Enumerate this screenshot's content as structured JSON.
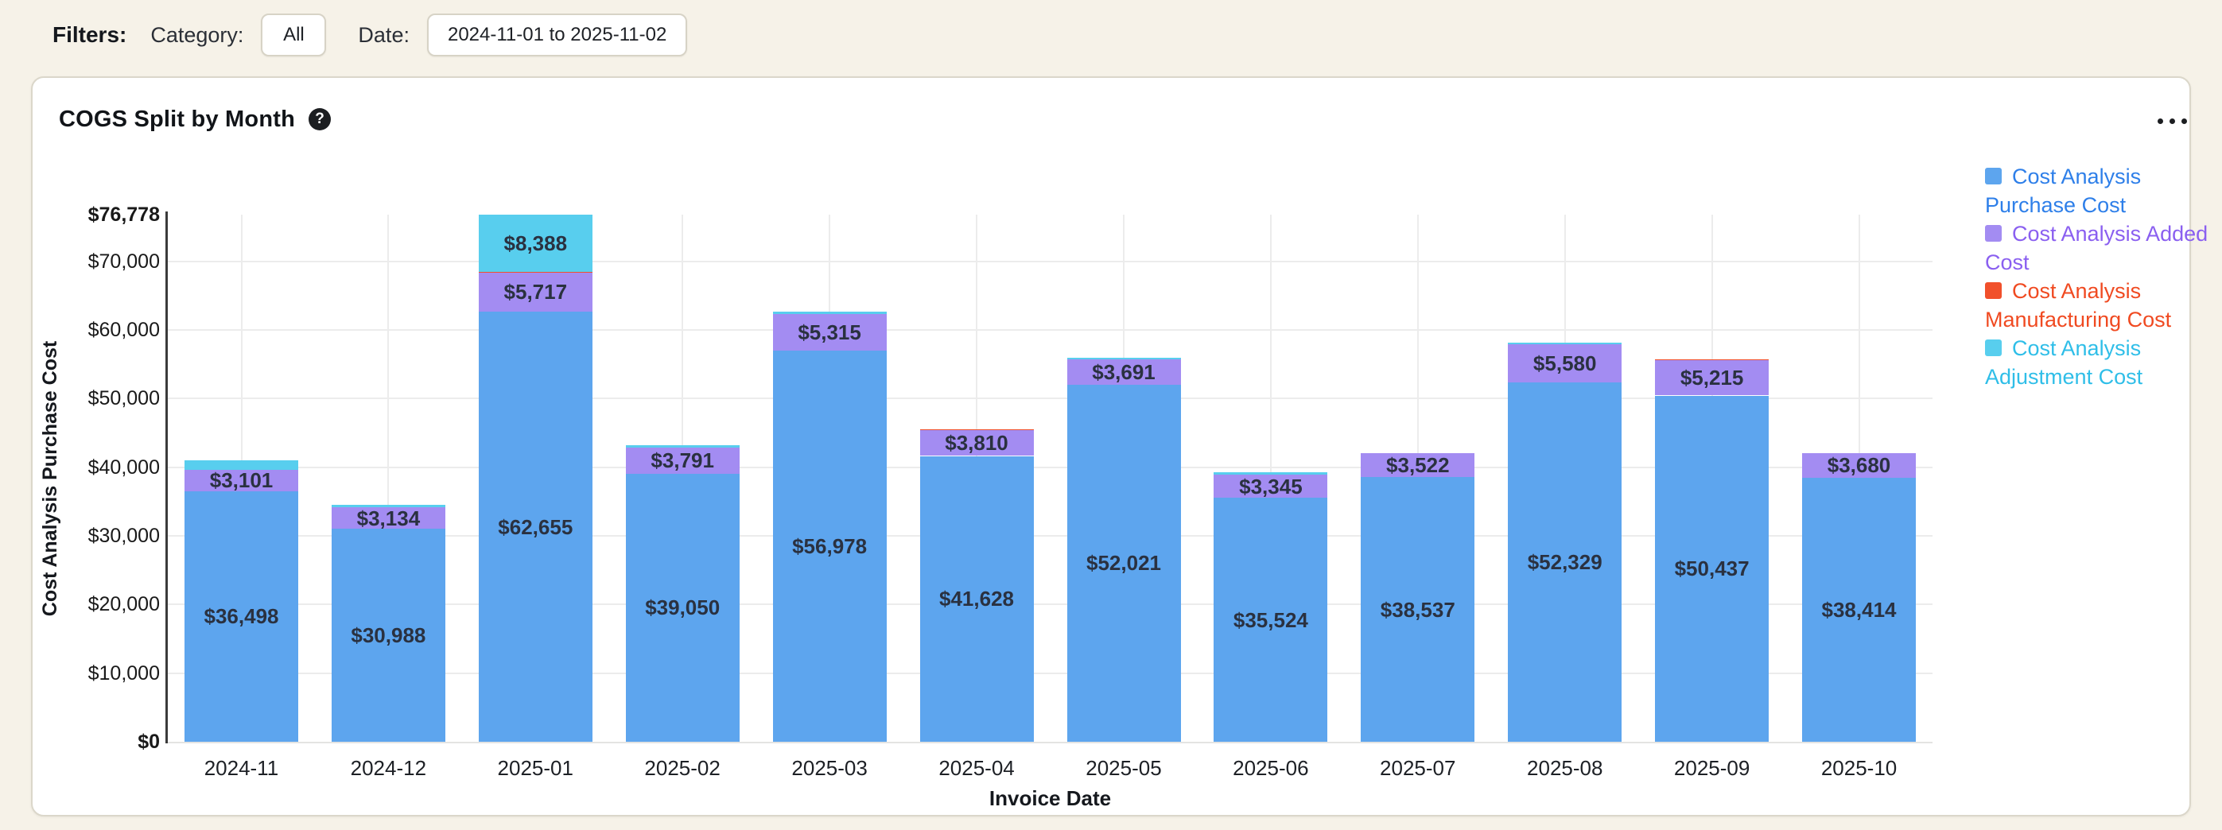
{
  "filters": {
    "label": "Filters:",
    "category_label": "Category:",
    "category_value": "All",
    "date_label": "Date:",
    "date_value": "2024-11-01 to 2025-11-02"
  },
  "card": {
    "title": "COGS Split by Month",
    "help_icon": "question-mark",
    "menu_icon": "ellipsis"
  },
  "chart_data": {
    "type": "bar",
    "stacked": true,
    "title": "COGS Split by Month",
    "xlabel": "Invoice Date",
    "ylabel": "Cost Analysis Purchase Cost",
    "ylim": [
      0,
      76778
    ],
    "grid": true,
    "legend_position": "right",
    "categories": [
      "2024-11",
      "2024-12",
      "2025-01",
      "2025-02",
      "2025-03",
      "2025-04",
      "2025-05",
      "2025-06",
      "2025-07",
      "2025-08",
      "2025-09",
      "2025-10"
    ],
    "yticks": [
      {
        "value": 0,
        "label": "$0",
        "bold": true
      },
      {
        "value": 10000,
        "label": "$10,000",
        "bold": false
      },
      {
        "value": 20000,
        "label": "$20,000",
        "bold": false
      },
      {
        "value": 30000,
        "label": "$30,000",
        "bold": false
      },
      {
        "value": 40000,
        "label": "$40,000",
        "bold": false
      },
      {
        "value": 50000,
        "label": "$50,000",
        "bold": false
      },
      {
        "value": 60000,
        "label": "$60,000",
        "bold": false
      },
      {
        "value": 70000,
        "label": "$70,000",
        "bold": false
      },
      {
        "value": 76778,
        "label": "$76,778",
        "bold": true
      }
    ],
    "series": [
      {
        "name": "Cost Analysis Purchase Cost",
        "color": "#5DA5EE",
        "text_color": "#2E7FE9",
        "values": [
          36498,
          30988,
          62655,
          39050,
          56978,
          41628,
          52021,
          35524,
          38537,
          52329,
          50437,
          38414
        ],
        "labels": [
          "$36,498",
          "$30,988",
          "$62,655",
          "$39,050",
          "$56,978",
          "$41,628",
          "$52,021",
          "$35,524",
          "$38,537",
          "$52,329",
          "$50,437",
          "$38,414"
        ]
      },
      {
        "name": "Cost Analysis Added Cost",
        "color": "#A38CF2",
        "text_color": "#8A5FF0",
        "values": [
          3101,
          3134,
          5717,
          3791,
          5315,
          3810,
          3691,
          3345,
          3522,
          5580,
          5215,
          3680
        ],
        "labels": [
          "$3,101",
          "$3,134",
          "$5,717",
          "$3,791",
          "$5,315",
          "$3,810",
          "$3,691",
          "$3,345",
          "$3,522",
          "$5,580",
          "$5,215",
          "$3,680"
        ]
      },
      {
        "name": "Cost Analysis Manufacturing Cost",
        "color": "#F1502B",
        "text_color": "#F04A21",
        "values": [
          0,
          0,
          18,
          0,
          0,
          130,
          0,
          0,
          0,
          0,
          110,
          0
        ],
        "labels": [
          null,
          null,
          null,
          null,
          null,
          null,
          null,
          null,
          null,
          null,
          null,
          null
        ]
      },
      {
        "name": "Cost Analysis Adjustment Cost",
        "color": "#58CEEE",
        "text_color": "#2FBEE8",
        "values": [
          1400,
          430,
          8388,
          380,
          390,
          0,
          240,
          420,
          0,
          210,
          0,
          0
        ],
        "labels": [
          null,
          null,
          "$8,388",
          null,
          null,
          null,
          null,
          null,
          null,
          null,
          null,
          null
        ]
      }
    ]
  }
}
